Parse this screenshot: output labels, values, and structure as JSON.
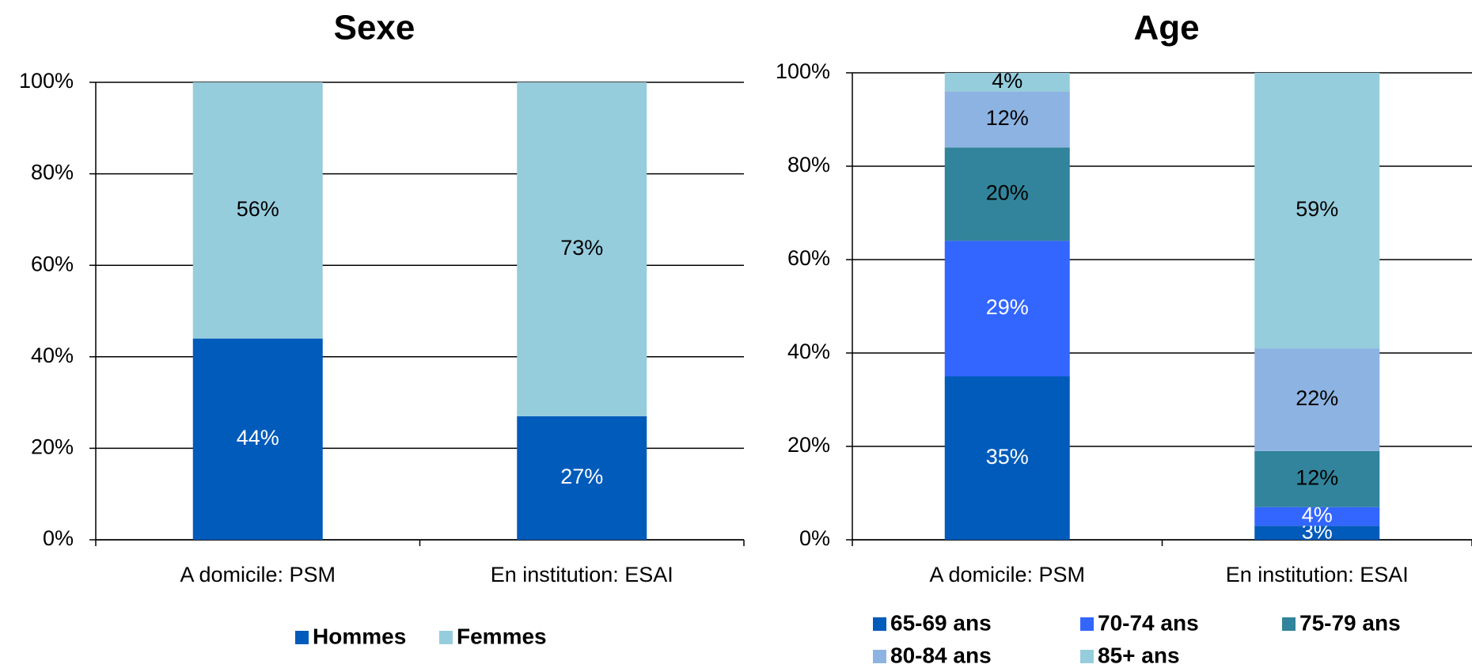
{
  "chart_data": [
    {
      "type": "bar",
      "stacked": true,
      "title": "Sexe",
      "categories": [
        "A domicile: PSM",
        "En institution: ESAI"
      ],
      "series": [
        {
          "name": "Hommes",
          "values": [
            44,
            27
          ],
          "labels": [
            "44%",
            "27%"
          ],
          "color": "#005bbb",
          "label_color": "#ffffff"
        },
        {
          "name": "Femmes",
          "values": [
            56,
            73
          ],
          "labels": [
            "56%",
            "73%"
          ],
          "color": "#96cddd",
          "label_color": "#000000"
        }
      ],
      "y_ticks": [
        "0%",
        "20%",
        "40%",
        "60%",
        "80%",
        "100%"
      ],
      "ylim": [
        0,
        100
      ],
      "grid": true,
      "legend_position": "bottom"
    },
    {
      "type": "bar",
      "stacked": true,
      "title": "Age",
      "categories": [
        "A domicile: PSM",
        "En institution: ESAI"
      ],
      "series": [
        {
          "name": "65-69 ans",
          "values": [
            35,
            3
          ],
          "labels": [
            "35%",
            "3%"
          ],
          "color": "#005bbb",
          "label_color": "#ffffff"
        },
        {
          "name": "70-74 ans",
          "values": [
            29,
            4
          ],
          "labels": [
            "29%",
            "4%"
          ],
          "color": "#3366ff",
          "label_color": "#ffffff"
        },
        {
          "name": "75-79 ans",
          "values": [
            20,
            12
          ],
          "labels": [
            "20%",
            "12%"
          ],
          "color": "#31849b",
          "label_color": "#000000"
        },
        {
          "name": "80-84 ans",
          "values": [
            12,
            22
          ],
          "labels": [
            "12%",
            "22%"
          ],
          "color": "#8db3e2",
          "label_color": "#000000"
        },
        {
          "name": "85+ ans",
          "values": [
            4,
            59
          ],
          "labels": [
            "4%",
            "59%"
          ],
          "color": "#96cddd",
          "label_color": "#000000"
        }
      ],
      "y_ticks": [
        "0%",
        "20%",
        "40%",
        "60%",
        "80%",
        "100%"
      ],
      "ylim": [
        0,
        100
      ],
      "grid": true,
      "legend_position": "bottom"
    }
  ]
}
